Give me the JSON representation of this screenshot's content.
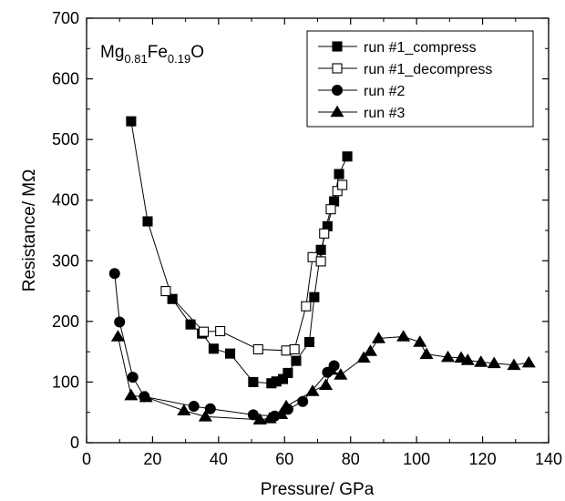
{
  "chart_data": {
    "type": "scatter",
    "xlabel": "Pressure/ GPa",
    "ylabel": "Resistance/ MΩ",
    "xlim": [
      0,
      140
    ],
    "ylim": [
      0,
      700
    ],
    "xticks": [
      0,
      20,
      40,
      60,
      80,
      100,
      120,
      140
    ],
    "yticks": [
      0,
      100,
      200,
      300,
      400,
      500,
      600,
      700
    ],
    "grid": false,
    "legend_position": "top-right",
    "annotation": {
      "main": "Mg",
      "sub1": "0.81",
      "mid": "Fe",
      "sub2": "0.19",
      "end": "O"
    },
    "series": [
      {
        "name": "run #1_compress",
        "marker": "square-filled",
        "x": [
          13.5,
          18.5,
          26,
          31.5,
          35,
          38.5,
          43.5,
          50.5,
          56,
          57.5,
          59.5,
          61,
          63.5,
          67.5,
          69,
          71,
          73,
          75,
          76.5,
          79
        ],
        "y": [
          530,
          365,
          237,
          195,
          180,
          155,
          147,
          100,
          98,
          101,
          105,
          115,
          135,
          166,
          240,
          318,
          357,
          398,
          443,
          472
        ]
      },
      {
        "name": "run #1_decompress",
        "marker": "square-open",
        "x": [
          24,
          35.5,
          40.5,
          52,
          60.5,
          63,
          66.5,
          68.5,
          71,
          72,
          74,
          76,
          77.5
        ],
        "y": [
          250,
          183,
          184,
          154,
          152,
          154,
          225,
          306,
          299,
          345,
          385,
          415,
          425
        ]
      },
      {
        "name": "run #2",
        "marker": "circle-filled",
        "x": [
          8.5,
          10,
          14,
          17.5,
          32.5,
          37.5,
          50.5,
          57,
          61,
          65.5,
          73,
          75
        ],
        "y": [
          279,
          199,
          108,
          76,
          60,
          56,
          46,
          44,
          55,
          68,
          116,
          127
        ]
      },
      {
        "name": "run #3",
        "marker": "triangle-filled",
        "x": [
          9.5,
          13.5,
          18,
          29.5,
          36,
          52.5,
          55.5,
          59,
          60.5,
          68.5,
          72.5,
          74,
          77,
          84,
          86,
          88.5,
          96,
          101,
          103,
          109.5,
          113.5,
          115.5,
          119.5,
          123.5,
          129.5,
          134
        ],
        "y": [
          175,
          78,
          75,
          53,
          43,
          38,
          40,
          47,
          60,
          85,
          95,
          120,
          112,
          140,
          151,
          172,
          175,
          166,
          146,
          141,
          140,
          136,
          133,
          131,
          128,
          132
        ]
      }
    ]
  }
}
